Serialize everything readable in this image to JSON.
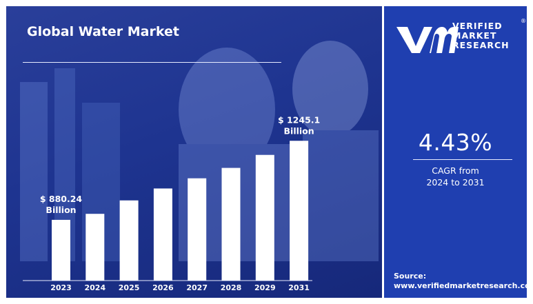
{
  "header": {
    "title": "Global Water Market"
  },
  "brand": {
    "line1": "VERIFIED",
    "line2": "MARKET",
    "line3": "RESEARCH",
    "registered": "®"
  },
  "cagr": {
    "value": "4.43%",
    "line1": "CAGR from",
    "line2": "2024 to 2031"
  },
  "source": {
    "label": "Source:",
    "url": "www.verifiedmarketresearch.com"
  },
  "colors": {
    "panel": "#1f3fb0",
    "background": "#1e3490",
    "bar": "#ffffff",
    "text": "#ffffff"
  },
  "chart_data": {
    "type": "bar",
    "title": "Global Water Market",
    "categories": [
      "2023",
      "2024",
      "2025",
      "2026",
      "2027",
      "2028",
      "2029",
      "2031"
    ],
    "series": [
      {
        "values": [
          880.24,
          908,
          970,
          1025,
          1072,
          1120,
          1180,
          1245.1
        ]
      }
    ],
    "ylim": [
      600,
      1300
    ],
    "annotations": [
      {
        "category": "2023",
        "line1": "$ 880.24",
        "line2": "Billion"
      },
      {
        "category": "2031",
        "line1": "$ 1245.1",
        "line2": "Billion"
      }
    ],
    "grid": false
  }
}
